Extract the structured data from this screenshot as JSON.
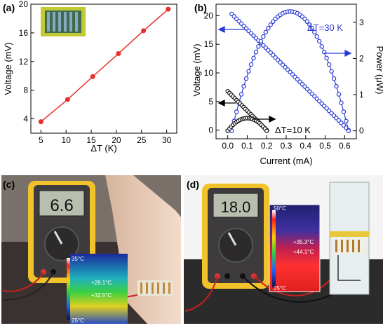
{
  "panel_labels": [
    "(a)",
    "(b)",
    "(c)",
    "(d)"
  ],
  "colors": {
    "red_series": "#e8302b",
    "blue_series": "#2a3bd6",
    "black_series": "#111111",
    "pcb_green": "#c3c934"
  },
  "chart_data": [
    {
      "type": "line",
      "panel": "(a)",
      "xlabel": "ΔT (K)",
      "ylabel": "Voltage (mV)",
      "xlim": [
        3,
        32
      ],
      "ylim": [
        2,
        20
      ],
      "x_ticks": [
        5,
        10,
        15,
        20,
        25,
        30
      ],
      "y_ticks": [
        4,
        8,
        12,
        16,
        20
      ],
      "x": [
        5,
        10.3,
        15.3,
        20.4,
        25.4,
        30.3
      ],
      "values": [
        3.6,
        6.7,
        9.9,
        13.1,
        16.3,
        19.3
      ]
    },
    {
      "type": "scatter",
      "panel": "(b)",
      "xlabel": "Current (mA)",
      "ylabel": "Voltage (mV)",
      "y2label": "Power (μW)",
      "xlim": [
        -0.06,
        0.66
      ],
      "ylim": [
        -1.5,
        22
      ],
      "y2lim": [
        -0.22,
        3.5
      ],
      "x_ticks": [
        0.0,
        0.1,
        0.2,
        0.3,
        0.4,
        0.5,
        0.6
      ],
      "y_ticks": [
        0,
        5,
        10,
        15,
        20
      ],
      "y2_ticks": [
        0,
        1,
        2,
        3
      ],
      "annotations": [
        "ΔT=30 K",
        "ΔT=10 K"
      ],
      "series": [
        {
          "axis": "left",
          "color": "blue",
          "x_range": [
            0.02,
            0.62
          ],
          "y_range": [
            20.3,
            0.0
          ]
        },
        {
          "axis": "right",
          "color": "blue",
          "x_range": [
            0.02,
            0.62
          ],
          "peak": [
            0.32,
            3.3
          ],
          "end": 0.2
        },
        {
          "axis": "left",
          "color": "black",
          "x_range": [
            0.0,
            0.2
          ],
          "y_range": [
            6.8,
            0.0
          ]
        },
        {
          "axis": "right",
          "color": "black",
          "x_range": [
            0.0,
            0.2
          ],
          "peak": [
            0.1,
            0.35
          ]
        }
      ]
    }
  ],
  "photo_c": {
    "meter_reading": "6.6",
    "thermal_scale_top": "35°C",
    "thermal_scale_bottom": "25°C",
    "readout_1": "+28.1°C",
    "readout_2": "+32.5°C"
  },
  "photo_d": {
    "meter_reading": "18.0",
    "thermal_scale_top": "50°C",
    "thermal_scale_bottom": "25°C",
    "readout_1": "+35.3°C",
    "readout_2": "+44.1°C"
  }
}
